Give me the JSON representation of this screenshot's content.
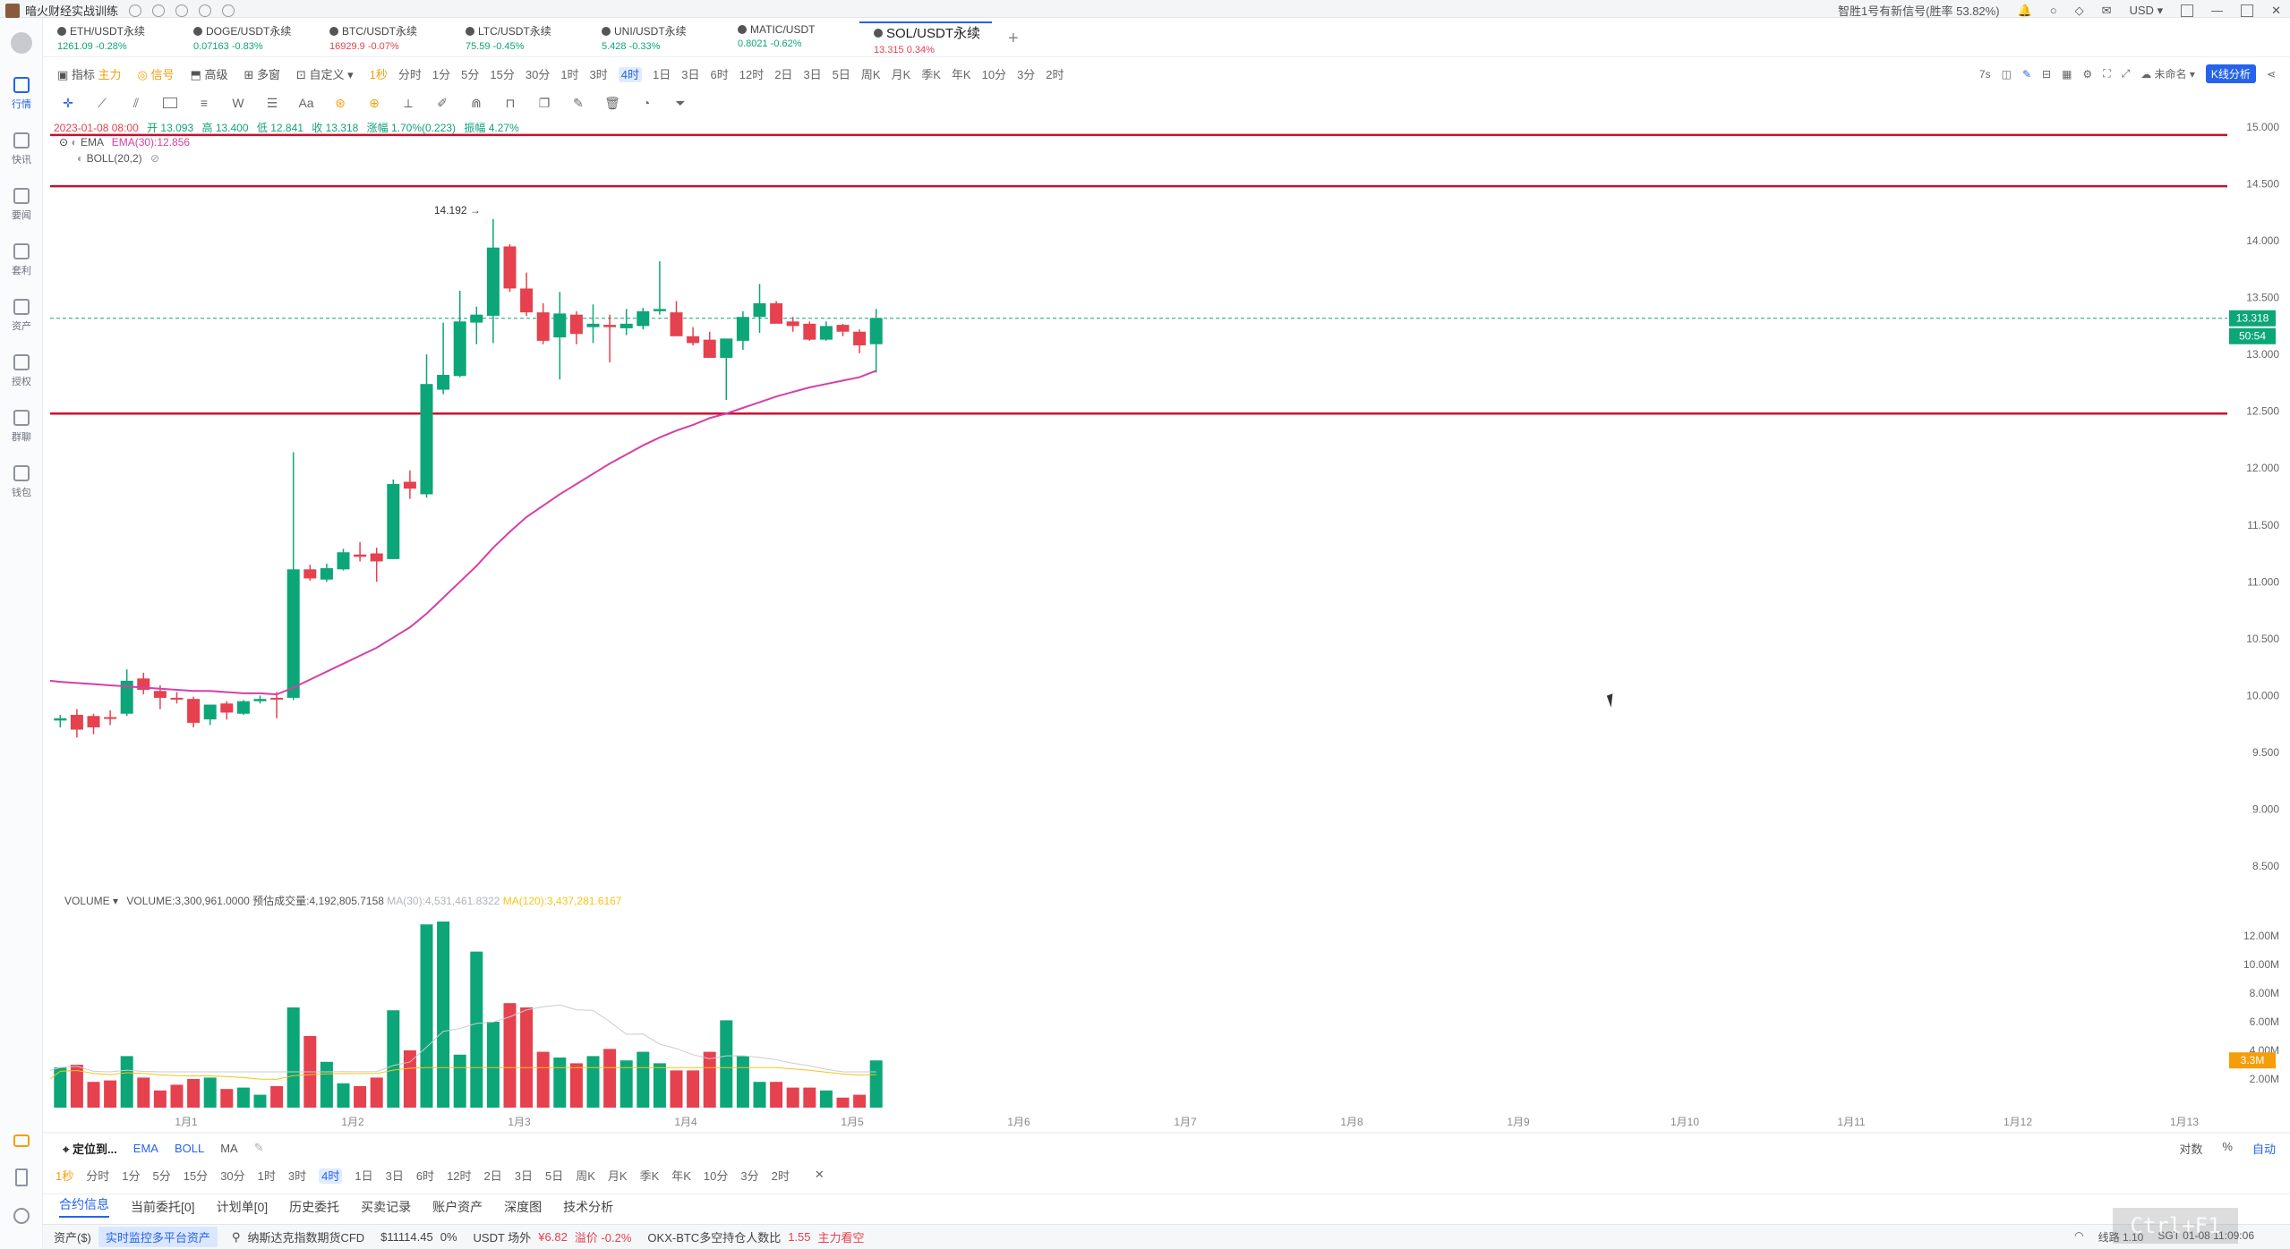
{
  "titlebar": {
    "app_name": "暗火财经实战训练",
    "signal_text": "智胜1号有新信号(胜率 53.82%)",
    "currency": "USD"
  },
  "sidebar": {
    "items": [
      {
        "label": "行情",
        "icon": "candlestick-icon",
        "active": true
      },
      {
        "label": "快讯",
        "icon": "news-icon"
      },
      {
        "label": "要闻",
        "icon": "article-icon"
      },
      {
        "label": "套利",
        "icon": "arbitrage-icon"
      },
      {
        "label": "资产",
        "icon": "asset-icon"
      },
      {
        "label": "授权",
        "icon": "auth-icon"
      },
      {
        "label": "群聊",
        "icon": "chat-icon"
      },
      {
        "label": "钱包",
        "icon": "wallet-icon"
      }
    ]
  },
  "tabs": [
    {
      "name": "ETH/USDT永续",
      "price": "1261.09",
      "change": "-0.28%",
      "dir": "up"
    },
    {
      "name": "DOGE/USDT永续",
      "price": "0.07163",
      "change": "-0.83%",
      "dir": "up"
    },
    {
      "name": "BTC/USDT永续",
      "price": "16929.9",
      "change": "-0.07%",
      "dir": "down"
    },
    {
      "name": "LTC/USDT永续",
      "price": "75.59",
      "change": "-0.45%",
      "dir": "up"
    },
    {
      "name": "UNI/USDT永续",
      "price": "5.428",
      "change": "-0.33%",
      "dir": "up"
    },
    {
      "name": "MATIC/USDT",
      "price": "0.8021",
      "change": "-0.62%",
      "dir": "up"
    },
    {
      "name": "SOL/USDT永续",
      "price": "13.315",
      "change": "0.34%",
      "dir": "down",
      "active": true
    }
  ],
  "toolbar": {
    "indicator": "指标",
    "main_force": "主力",
    "signal": "信号",
    "advanced": "高级",
    "multi": "多窗",
    "custom": "自定义",
    "intervals": [
      "1秒",
      "分时",
      "1分",
      "5分",
      "15分",
      "30分",
      "1时",
      "3时",
      "4时",
      "1日",
      "3日",
      "6时",
      "12时",
      "2日",
      "3日",
      "5日",
      "周K",
      "月K",
      "季K",
      "年K",
      "10分",
      "3分",
      "2时"
    ],
    "selected_interval": "4时",
    "right_seconds": "7s",
    "unnamed": "未命名",
    "k_analysis": "K线分析"
  },
  "statusline": {
    "date": "2023-01-08 08:00",
    "open": "开 13.093",
    "high": "高 13.400",
    "low": "低 12.841",
    "close": "收 13.318",
    "change": "涨幅 1.70%(0.223)",
    "amplitude": "振幅 4.27%"
  },
  "indicators": {
    "ema_label": "EMA",
    "ema_value": "EMA(30):12.856",
    "boll_label": "BOLL(20,2)"
  },
  "chart_data": {
    "type": "candlestick",
    "y_range": [
      8.5,
      15.0
    ],
    "y_ticks": [
      "15.000",
      "14.500",
      "14.000",
      "13.500",
      "13.000",
      "12.500",
      "12.000",
      "11.500",
      "11.000",
      "10.500",
      "10.000",
      "9.500",
      "9.000",
      "8.500"
    ],
    "x_labels": [
      "1月1",
      "1月2",
      "1月3",
      "1月4",
      "1月5",
      "1月6",
      "1月7",
      "1月8",
      "1月9",
      "1月10",
      "1月11",
      "1月12",
      "1月13"
    ],
    "candles": [
      {
        "o": 9.78,
        "h": 9.83,
        "l": 9.72,
        "c": 9.8
      },
      {
        "o": 9.83,
        "h": 9.88,
        "l": 9.63,
        "c": 9.7
      },
      {
        "o": 9.82,
        "h": 9.84,
        "l": 9.66,
        "c": 9.72
      },
      {
        "o": 9.81,
        "h": 9.87,
        "l": 9.74,
        "c": 9.8
      },
      {
        "o": 9.84,
        "h": 10.23,
        "l": 9.82,
        "c": 10.13
      },
      {
        "o": 10.15,
        "h": 10.2,
        "l": 10.01,
        "c": 10.05
      },
      {
        "o": 10.04,
        "h": 10.09,
        "l": 9.88,
        "c": 9.98
      },
      {
        "o": 9.98,
        "h": 10.03,
        "l": 9.93,
        "c": 9.97
      },
      {
        "o": 9.97,
        "h": 9.99,
        "l": 9.72,
        "c": 9.76
      },
      {
        "o": 9.79,
        "h": 9.92,
        "l": 9.74,
        "c": 9.92
      },
      {
        "o": 9.93,
        "h": 9.95,
        "l": 9.79,
        "c": 9.85
      },
      {
        "o": 9.84,
        "h": 9.96,
        "l": 9.83,
        "c": 9.95
      },
      {
        "o": 9.95,
        "h": 10.0,
        "l": 9.93,
        "c": 9.97
      },
      {
        "o": 9.98,
        "h": 10.03,
        "l": 9.8,
        "c": 9.97
      },
      {
        "o": 9.98,
        "h": 12.14,
        "l": 9.96,
        "c": 11.11
      },
      {
        "o": 11.11,
        "h": 11.15,
        "l": 11.01,
        "c": 11.03
      },
      {
        "o": 11.02,
        "h": 11.16,
        "l": 11.0,
        "c": 11.12
      },
      {
        "o": 11.11,
        "h": 11.29,
        "l": 11.1,
        "c": 11.26
      },
      {
        "o": 11.24,
        "h": 11.35,
        "l": 11.18,
        "c": 11.22
      },
      {
        "o": 11.25,
        "h": 11.3,
        "l": 11.0,
        "c": 11.18
      },
      {
        "o": 11.2,
        "h": 11.9,
        "l": 11.2,
        "c": 11.86
      },
      {
        "o": 11.88,
        "h": 11.98,
        "l": 11.73,
        "c": 11.82
      },
      {
        "o": 11.77,
        "h": 13.0,
        "l": 11.74,
        "c": 12.74
      },
      {
        "o": 12.69,
        "h": 13.28,
        "l": 12.65,
        "c": 12.82
      },
      {
        "o": 12.81,
        "h": 13.56,
        "l": 12.8,
        "c": 13.29
      },
      {
        "o": 13.28,
        "h": 13.42,
        "l": 13.09,
        "c": 13.35
      },
      {
        "o": 13.34,
        "h": 14.19,
        "l": 13.1,
        "c": 13.94
      },
      {
        "o": 13.95,
        "h": 13.97,
        "l": 13.55,
        "c": 13.58
      },
      {
        "o": 13.58,
        "h": 13.72,
        "l": 13.34,
        "c": 13.37
      },
      {
        "o": 13.37,
        "h": 13.45,
        "l": 13.09,
        "c": 13.12
      },
      {
        "o": 13.15,
        "h": 13.55,
        "l": 12.78,
        "c": 13.36
      },
      {
        "o": 13.35,
        "h": 13.38,
        "l": 13.09,
        "c": 13.18
      },
      {
        "o": 13.24,
        "h": 13.44,
        "l": 13.1,
        "c": 13.27
      },
      {
        "o": 13.26,
        "h": 13.35,
        "l": 12.93,
        "c": 13.24
      },
      {
        "o": 13.23,
        "h": 13.4,
        "l": 13.17,
        "c": 13.27
      },
      {
        "o": 13.25,
        "h": 13.41,
        "l": 13.22,
        "c": 13.38
      },
      {
        "o": 13.38,
        "h": 13.82,
        "l": 13.35,
        "c": 13.4
      },
      {
        "o": 13.37,
        "h": 13.47,
        "l": 13.2,
        "c": 13.16
      },
      {
        "o": 13.16,
        "h": 13.24,
        "l": 13.08,
        "c": 13.1
      },
      {
        "o": 13.13,
        "h": 13.2,
        "l": 12.98,
        "c": 12.97
      },
      {
        "o": 12.97,
        "h": 13.1,
        "l": 12.6,
        "c": 13.14
      },
      {
        "o": 13.12,
        "h": 13.38,
        "l": 13.04,
        "c": 13.33
      },
      {
        "o": 13.33,
        "h": 13.62,
        "l": 13.19,
        "c": 13.45
      },
      {
        "o": 13.45,
        "h": 13.47,
        "l": 13.28,
        "c": 13.27
      },
      {
        "o": 13.29,
        "h": 13.33,
        "l": 13.2,
        "c": 13.25
      },
      {
        "o": 13.27,
        "h": 13.29,
        "l": 13.12,
        "c": 13.13
      },
      {
        "o": 13.13,
        "h": 13.29,
        "l": 13.12,
        "c": 13.25
      },
      {
        "o": 13.26,
        "h": 13.27,
        "l": 13.16,
        "c": 13.2
      },
      {
        "o": 13.2,
        "h": 13.22,
        "l": 13.01,
        "c": 13.08
      },
      {
        "o": 13.09,
        "h": 13.4,
        "l": 12.84,
        "c": 13.32
      }
    ],
    "ema30": [
      10.12,
      10.11,
      10.1,
      10.09,
      10.08,
      10.07,
      10.06,
      10.05,
      10.04,
      10.04,
      10.03,
      10.02,
      10.02,
      10.01,
      10.07,
      10.14,
      10.21,
      10.28,
      10.35,
      10.42,
      10.51,
      10.6,
      10.72,
      10.86,
      11.0,
      11.14,
      11.3,
      11.44,
      11.57,
      11.67,
      11.77,
      11.86,
      11.95,
      12.04,
      12.12,
      12.2,
      12.27,
      12.33,
      12.38,
      12.44,
      12.48,
      12.53,
      12.58,
      12.63,
      12.67,
      12.71,
      12.74,
      12.77,
      12.8,
      12.856
    ],
    "horizontal_lines": [
      14.93,
      14.48,
      12.48
    ],
    "current_price": "13.318",
    "countdown": "50:54",
    "high_marker": "14.192",
    "volume": {
      "y_ticks": [
        "12.00M",
        "10.00M",
        "8.00M",
        "6.00M",
        "4.00M",
        "2.00M"
      ],
      "y_range": [
        0,
        13.0
      ],
      "values": [
        2.8,
        3.0,
        1.8,
        1.9,
        3.6,
        2.1,
        1.2,
        1.6,
        2.0,
        2.1,
        1.3,
        1.4,
        0.9,
        1.5,
        7.0,
        5.0,
        3.2,
        1.7,
        1.5,
        2.1,
        6.8,
        4.0,
        12.8,
        13.0,
        3.7,
        10.9,
        6.0,
        7.3,
        7.0,
        3.9,
        3.5,
        3.1,
        3.6,
        4.1,
        3.3,
        3.9,
        3.1,
        2.6,
        2.6,
        3.9,
        6.1,
        3.6,
        1.8,
        1.8,
        1.4,
        1.4,
        1.2,
        0.7,
        0.9,
        3.3
      ],
      "current": "3.3M"
    }
  },
  "volume_header": {
    "label": "VOLUME",
    "value": "VOLUME:3,300,961.0000",
    "estimate": "预估成交量:4,192,805.7158",
    "ma30": "MA(30):4,531,461.8322",
    "ma120": "MA(120):3,437,281.6167"
  },
  "bottom_bar": {
    "locate": "定位到...",
    "ind1": "EMA",
    "ind2": "BOLL",
    "ind3": "MA",
    "right1": "对数",
    "right2": "%",
    "right3": "自动"
  },
  "panel_tabs": [
    "合约信息",
    "当前委托[0]",
    "计划单[0]",
    "历史委托",
    "买卖记录",
    "账户资产",
    "深度图",
    "技术分析"
  ],
  "footer": {
    "assets": "资产($)",
    "monitor": "实时监控多平台资产",
    "nasdaq": "纳斯达克指数期货CFD",
    "nasdaq_val": "$11114.45",
    "nasdaq_chg": "0%",
    "usdt_label": "USDT 场外",
    "usdt_val": "¥6.82",
    "premium": "溢价 -0.2%",
    "okx": "OKX-BTC多空持仓人数比",
    "okx_val": "1.55",
    "okx_status": "主力看空",
    "line": "线路 1.10",
    "time": "SGT 01-08 11:09:06"
  },
  "hint": "Ctrl+F1"
}
